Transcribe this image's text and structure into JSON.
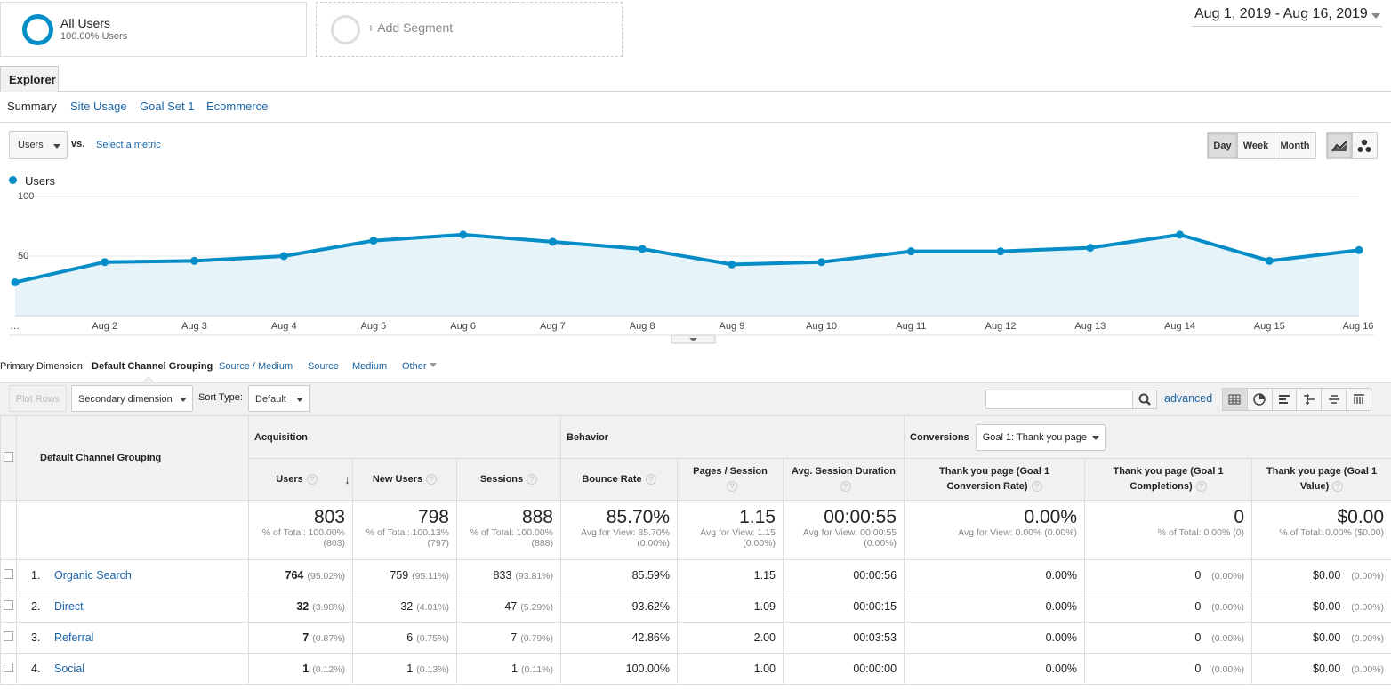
{
  "segments": {
    "all_users": {
      "title": "All Users",
      "subtitle": "100.00% Users"
    },
    "add_segment": "+ Add Segment"
  },
  "date_range": "Aug 1, 2019 - Aug 16, 2019",
  "tabs": {
    "explorer": "Explorer"
  },
  "subtabs": [
    "Summary",
    "Site Usage",
    "Goal Set 1",
    "Ecommerce"
  ],
  "metric_select": {
    "value": "Users",
    "vs": "vs.",
    "select_metric": "Select a metric"
  },
  "granularity": [
    "Day",
    "Week",
    "Month"
  ],
  "colors": {
    "series": "#058dc7",
    "fill": "#e6f3f9",
    "link": "#1a65a8"
  },
  "chart_data": {
    "type": "line",
    "series": [
      {
        "name": "Users",
        "values": [
          28,
          45,
          46,
          50,
          63,
          68,
          62,
          56,
          43,
          45,
          54,
          54,
          57,
          68,
          46,
          55
        ]
      }
    ],
    "x_labels": [
      "…",
      "Aug 2",
      "Aug 3",
      "Aug 4",
      "Aug 5",
      "Aug 6",
      "Aug 7",
      "Aug 8",
      "Aug 9",
      "Aug 10",
      "Aug 11",
      "Aug 12",
      "Aug 13",
      "Aug 14",
      "Aug 15",
      "Aug 16"
    ],
    "y_ticks": [
      "100",
      "50"
    ],
    "ylim": [
      0,
      100
    ],
    "grid": true
  },
  "dimensions": {
    "label": "Primary Dimension:",
    "current": "Default Channel Grouping",
    "options": [
      "Source / Medium",
      "Source",
      "Medium",
      "Other"
    ]
  },
  "toolbar": {
    "plot_rows": "Plot Rows",
    "secondary_dimension": "Secondary dimension",
    "sort_type_label": "Sort Type:",
    "sort_type_value": "Default",
    "search_placeholder": "",
    "advanced": "advanced"
  },
  "table": {
    "dim_header": "Default Channel Grouping",
    "groups": {
      "acquisition": "Acquisition",
      "behavior": "Behavior",
      "conversions": "Conversions",
      "goal_select": "Goal 1: Thank you page"
    },
    "columns": [
      "Users",
      "New Users",
      "Sessions",
      "Bounce Rate",
      "Pages / Session",
      "Avg. Session Duration",
      "Thank you page (Goal 1 Conversion Rate)",
      "Thank you page (Goal 1 Completions)",
      "Thank you page (Goal 1 Value)"
    ],
    "totals": [
      {
        "big": "803",
        "sm1": "% of Total: 100.00%",
        "sm2": "(803)"
      },
      {
        "big": "798",
        "sm1": "% of Total: 100.13%",
        "sm2": "(797)"
      },
      {
        "big": "888",
        "sm1": "% of Total: 100.00%",
        "sm2": "(888)"
      },
      {
        "big": "85.70%",
        "sm1": "Avg for View: 85.70%",
        "sm2": "(0.00%)"
      },
      {
        "big": "1.15",
        "sm1": "Avg for View: 1.15",
        "sm2": "(0.00%)"
      },
      {
        "big": "00:00:55",
        "sm1": "Avg for View: 00:00:55",
        "sm2": "(0.00%)"
      },
      {
        "big": "0.00%",
        "sm1": "Avg for View: 0.00% (0.00%)",
        "sm2": ""
      },
      {
        "big": "0",
        "sm1": "% of Total: 0.00% (0)",
        "sm2": ""
      },
      {
        "big": "$0.00",
        "sm1": "% of Total: 0.00% ($0.00)",
        "sm2": ""
      }
    ],
    "rows": [
      {
        "idx": "1.",
        "name": "Organic Search",
        "users": "764",
        "users_p": "(95.02%)",
        "new": "759",
        "new_p": "(95.11%)",
        "sess": "833",
        "sess_p": "(93.81%)",
        "bounce": "85.59%",
        "pps": "1.15",
        "dur": "00:00:56",
        "conv": "0.00%",
        "comp": "0",
        "comp_p": "(0.00%)",
        "val": "$0.00",
        "val_p": "(0.00%)"
      },
      {
        "idx": "2.",
        "name": "Direct",
        "users": "32",
        "users_p": "(3.98%)",
        "new": "32",
        "new_p": "(4.01%)",
        "sess": "47",
        "sess_p": "(5.29%)",
        "bounce": "93.62%",
        "pps": "1.09",
        "dur": "00:00:15",
        "conv": "0.00%",
        "comp": "0",
        "comp_p": "(0.00%)",
        "val": "$0.00",
        "val_p": "(0.00%)"
      },
      {
        "idx": "3.",
        "name": "Referral",
        "users": "7",
        "users_p": "(0.87%)",
        "new": "6",
        "new_p": "(0.75%)",
        "sess": "7",
        "sess_p": "(0.79%)",
        "bounce": "42.86%",
        "pps": "2.00",
        "dur": "00:03:53",
        "conv": "0.00%",
        "comp": "0",
        "comp_p": "(0.00%)",
        "val": "$0.00",
        "val_p": "(0.00%)"
      },
      {
        "idx": "4.",
        "name": "Social",
        "users": "1",
        "users_p": "(0.12%)",
        "new": "1",
        "new_p": "(0.13%)",
        "sess": "1",
        "sess_p": "(0.11%)",
        "bounce": "100.00%",
        "pps": "1.00",
        "dur": "00:00:00",
        "conv": "0.00%",
        "comp": "0",
        "comp_p": "(0.00%)",
        "val": "$0.00",
        "val_p": "(0.00%)"
      }
    ]
  }
}
